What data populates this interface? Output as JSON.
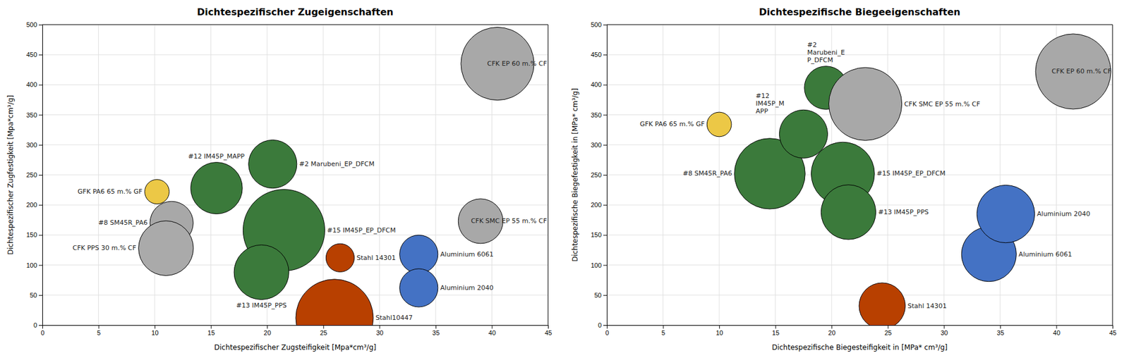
{
  "chart_data": [
    {
      "type": "bubble",
      "title": "Dichtespezifischer Zugeigenschaften",
      "xlabel": "Dichtespezifischer Zugsteifigkeit [Mpa*cm³/g]",
      "ylabel": "Dichtespezifischer Zugfestigkeit [Mpa*cm³/g]",
      "xlim": [
        0,
        45
      ],
      "ylim": [
        0,
        500
      ],
      "xticks": [
        0,
        5,
        10,
        15,
        20,
        25,
        30,
        35,
        40,
        45
      ],
      "yticks": [
        0,
        50,
        100,
        150,
        200,
        250,
        300,
        350,
        400,
        450,
        500
      ],
      "grid": true,
      "labels": [
        "GFK PA6 65 m.% GF",
        "#8 SM45R_PA6",
        "CFK PPS 30 m.% CF",
        "#12 IM45P_MAPP",
        "#2 Marubeni_EP_DFCM",
        "#15 IM45P_EP_DFCM",
        "#13 IM45P_PPS",
        "Stahl 14301",
        "Stahl10447",
        "Aluminium 6061",
        "Aluminium 2040",
        "CFK SMC EP 55 m.% CF",
        "CFK EP 60 m.% CF"
      ],
      "x": [
        10.2,
        11.5,
        11.0,
        15.5,
        20.5,
        21.5,
        19.5,
        26.5,
        26.0,
        33.5,
        33.5,
        39.0,
        40.5
      ],
      "values": [
        222,
        170,
        128,
        228,
        268,
        158,
        88,
        112,
        12,
        118,
        62,
        173,
        435
      ],
      "sizes": [
        900,
        2800,
        4500,
        4000,
        3500,
        10000,
        4500,
        1200,
        9000,
        2200,
        2200,
        3000,
        8000
      ],
      "colors": [
        "#ECC846",
        "#A8A8A8",
        "#AAAAAA",
        "#3B7A3B",
        "#3B7A3B",
        "#3B7A3B",
        "#3B7A3B",
        "#B84000",
        "#B84000",
        "#4472C4",
        "#4472C4",
        "#A8A8A8",
        "#A8A8A8"
      ]
    },
    {
      "type": "bubble",
      "title": "Dichtespezifische Biegeeigenschaften",
      "xlabel": "Dichtespezifische Biegesteifigkeit in [MPa* cm³/g]",
      "ylabel": "Dichtespezifische Biegefestigkeit in [MPa* cm³/g]",
      "xlim": [
        0,
        45
      ],
      "ylim": [
        0,
        500
      ],
      "xticks": [
        0,
        5,
        10,
        15,
        20,
        25,
        30,
        35,
        40,
        45
      ],
      "yticks": [
        0,
        50,
        100,
        150,
        200,
        250,
        300,
        350,
        400,
        450,
        500
      ],
      "grid": true,
      "labels": [
        "GFK PA6 65 m.% GF",
        "#8 SM45R_PA6",
        "#12\nIM45P_M\nAPP",
        "#2\nMarubeni_E\nP_DFCM",
        "#15 IM45P_EP_DFCM",
        "#13 IM45P_PPS",
        "CFK SMC EP 55 m.% CF",
        "Stahl 14301",
        "Aluminium 6061",
        "Aluminium 2040",
        "CFK EP 60 m.% CF"
      ],
      "x": [
        10.0,
        14.5,
        17.5,
        19.5,
        21.0,
        21.5,
        23.0,
        24.5,
        34.0,
        35.5,
        41.5
      ],
      "values": [
        334,
        252,
        318,
        395,
        252,
        188,
        368,
        32,
        118,
        185,
        422
      ],
      "sizes": [
        900,
        7500,
        3500,
        2800,
        6000,
        4500,
        8000,
        3200,
        4500,
        5000,
        8500
      ],
      "colors": [
        "#ECC846",
        "#3B7A3B",
        "#3B7A3B",
        "#3B7A3B",
        "#3B7A3B",
        "#3B7A3B",
        "#A8A8A8",
        "#B84000",
        "#4472C4",
        "#4472C4",
        "#A8A8A8"
      ]
    }
  ]
}
